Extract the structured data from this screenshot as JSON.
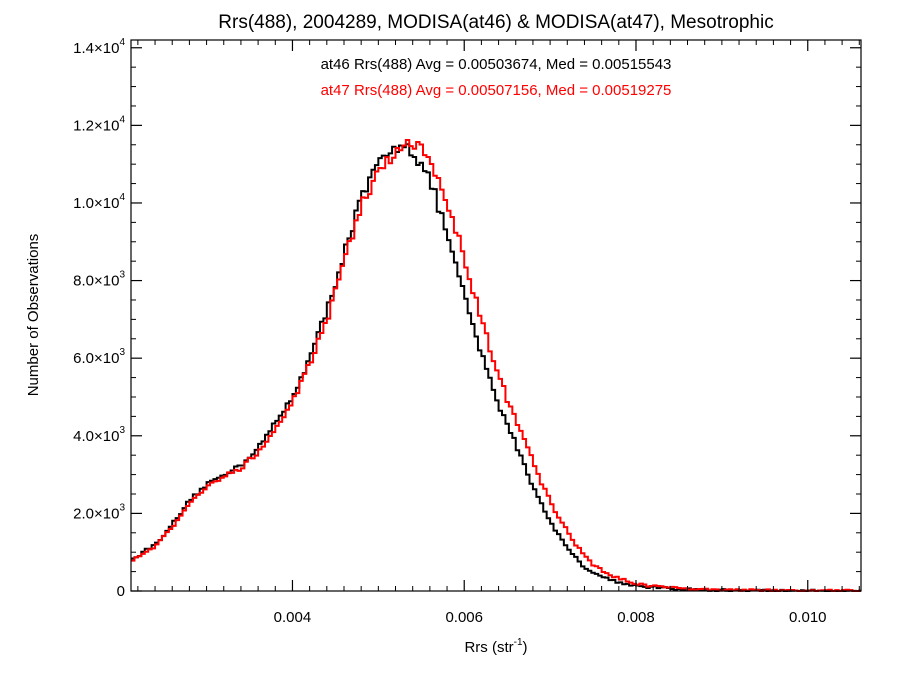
{
  "chart_data": {
    "type": "line",
    "title": "Rrs(488), 2004289, MODISA(at46) & MODISA(at47), Mesotrophic",
    "xlabel_base": "Rrs (str",
    "xlabel_sup": "-1",
    "xlabel_close": ")",
    "ylabel": "Number of Observations",
    "xlim": [
      0.00212,
      0.01062
    ],
    "ylim": [
      0,
      14200
    ],
    "x_ticks": [
      {
        "value": 0.004,
        "label": "0.004"
      },
      {
        "value": 0.006,
        "label": "0.006"
      },
      {
        "value": 0.008,
        "label": "0.008"
      },
      {
        "value": 0.01,
        "label": "0.010"
      }
    ],
    "y_ticks": [
      {
        "value": 0,
        "mantissa": "0",
        "exp": ""
      },
      {
        "value": 2000,
        "mantissa": "2.0×10",
        "exp": "3"
      },
      {
        "value": 4000,
        "mantissa": "4.0×10",
        "exp": "3"
      },
      {
        "value": 6000,
        "mantissa": "6.0×10",
        "exp": "3"
      },
      {
        "value": 8000,
        "mantissa": "8.0×10",
        "exp": "3"
      },
      {
        "value": 10000,
        "mantissa": "1.0×10",
        "exp": "4"
      },
      {
        "value": 12000,
        "mantissa": "1.2×10",
        "exp": "4"
      },
      {
        "value": 14000,
        "mantissa": "1.4×10",
        "exp": "4"
      }
    ],
    "grid": false,
    "bin_width": 4e-05,
    "series": [
      {
        "name": "at46",
        "color": "#000000",
        "annotation": "at46 Rrs(488) Avg = 0.00503674, Med = 0.00515543",
        "points": [
          [
            0.00212,
            800
          ],
          [
            0.0024,
            1200
          ],
          [
            0.0026,
            1700
          ],
          [
            0.0028,
            2300
          ],
          [
            0.003,
            2750
          ],
          [
            0.0032,
            3000
          ],
          [
            0.0034,
            3250
          ],
          [
            0.0036,
            3700
          ],
          [
            0.0038,
            4300
          ],
          [
            0.004,
            5000
          ],
          [
            0.0042,
            6000
          ],
          [
            0.0044,
            7200
          ],
          [
            0.0046,
            8700
          ],
          [
            0.0048,
            10100
          ],
          [
            0.005,
            11000
          ],
          [
            0.0052,
            11400
          ],
          [
            0.00528,
            11600
          ],
          [
            0.0054,
            11350
          ],
          [
            0.0056,
            10600
          ],
          [
            0.0058,
            9200
          ],
          [
            0.006,
            7600
          ],
          [
            0.0062,
            6100
          ],
          [
            0.0064,
            4800
          ],
          [
            0.0066,
            3800
          ],
          [
            0.0068,
            2700
          ],
          [
            0.007,
            1800
          ],
          [
            0.0072,
            1100
          ],
          [
            0.0074,
            620
          ],
          [
            0.0076,
            370
          ],
          [
            0.0078,
            230
          ],
          [
            0.008,
            130
          ],
          [
            0.0084,
            60
          ],
          [
            0.0088,
            25
          ],
          [
            0.0094,
            12
          ],
          [
            0.01,
            5
          ],
          [
            0.0106,
            2
          ]
        ]
      },
      {
        "name": "at47",
        "color": "#ff0000",
        "annotation": "at47 Rrs(488) Avg = 0.00507156, Med = 0.00519275",
        "points": [
          [
            0.00212,
            780
          ],
          [
            0.0024,
            1160
          ],
          [
            0.0026,
            1650
          ],
          [
            0.0028,
            2230
          ],
          [
            0.003,
            2680
          ],
          [
            0.0032,
            2950
          ],
          [
            0.0034,
            3180
          ],
          [
            0.0036,
            3600
          ],
          [
            0.0038,
            4200
          ],
          [
            0.004,
            4880
          ],
          [
            0.0042,
            5850
          ],
          [
            0.0044,
            7000
          ],
          [
            0.0046,
            8500
          ],
          [
            0.0048,
            9900
          ],
          [
            0.005,
            10850
          ],
          [
            0.0052,
            11300
          ],
          [
            0.00536,
            11450
          ],
          [
            0.0055,
            11400
          ],
          [
            0.0057,
            10700
          ],
          [
            0.0059,
            9350
          ],
          [
            0.0061,
            7750
          ],
          [
            0.0063,
            6250
          ],
          [
            0.0065,
            4950
          ],
          [
            0.0067,
            3900
          ],
          [
            0.0069,
            2800
          ],
          [
            0.0071,
            1900
          ],
          [
            0.0073,
            1180
          ],
          [
            0.0075,
            680
          ],
          [
            0.0077,
            400
          ],
          [
            0.0079,
            250
          ],
          [
            0.0081,
            140
          ],
          [
            0.0085,
            65
          ],
          [
            0.0089,
            28
          ],
          [
            0.0095,
            13
          ],
          [
            0.0101,
            6
          ],
          [
            0.0106,
            2
          ]
        ]
      }
    ]
  }
}
